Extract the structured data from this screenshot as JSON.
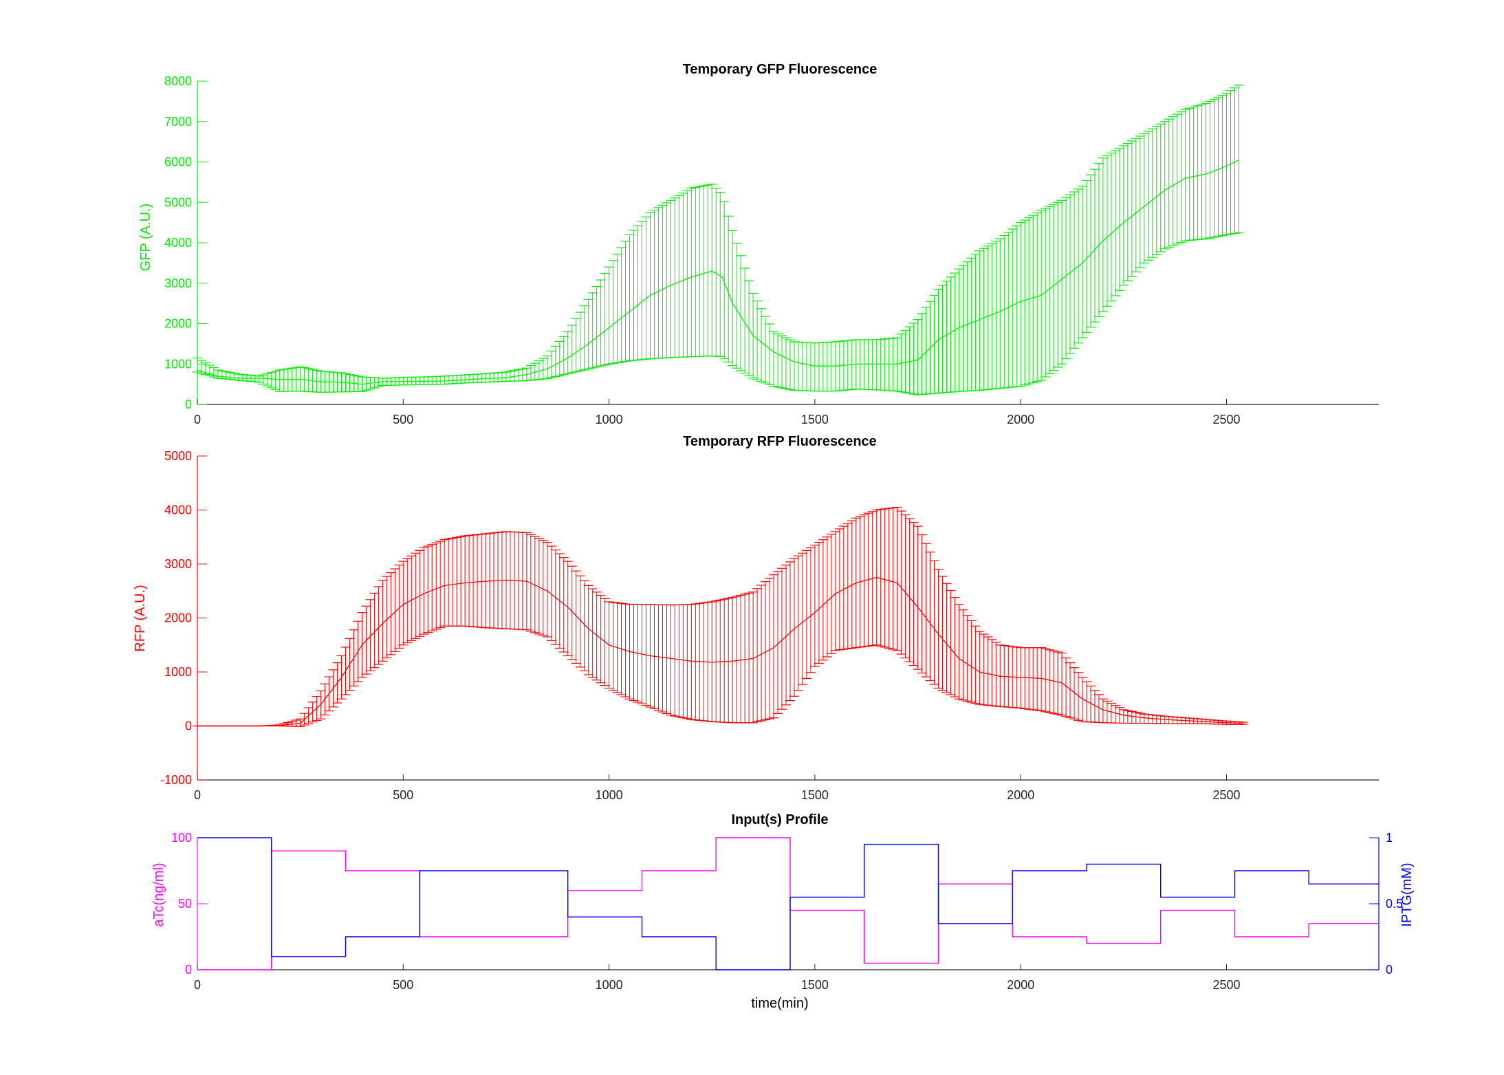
{
  "chart_data": [
    {
      "type": "line",
      "title": "Temporary GFP Fluorescence",
      "xlabel": "",
      "ylabel": "GFP (A.U.)",
      "color": "#00ee00",
      "xlim": [
        0,
        2870
      ],
      "ylim": [
        0,
        8000
      ],
      "xticks": [
        0,
        500,
        1000,
        1500,
        2000,
        2500
      ],
      "yticks": [
        0,
        1000,
        2000,
        3000,
        4000,
        5000,
        6000,
        7000,
        8000
      ],
      "error_bars": true,
      "x": [
        0,
        50,
        100,
        150,
        200,
        250,
        300,
        350,
        400,
        450,
        500,
        550,
        600,
        650,
        700,
        750,
        800,
        850,
        900,
        950,
        1000,
        1050,
        1100,
        1150,
        1200,
        1250,
        1275,
        1300,
        1350,
        1400,
        1450,
        1500,
        1550,
        1600,
        1650,
        1700,
        1750,
        1800,
        1850,
        1900,
        1950,
        2000,
        2050,
        2100,
        2150,
        2200,
        2250,
        2300,
        2350,
        2400,
        2450,
        2500,
        2530
      ],
      "mean": [
        850,
        700,
        650,
        650,
        620,
        620,
        560,
        550,
        500,
        560,
        570,
        570,
        580,
        610,
        640,
        660,
        740,
        880,
        1150,
        1500,
        1900,
        2300,
        2700,
        2950,
        3150,
        3300,
        3150,
        2500,
        1700,
        1300,
        1050,
        950,
        950,
        1000,
        1000,
        1000,
        1100,
        1600,
        1900,
        2100,
        2300,
        2550,
        2700,
        3100,
        3500,
        4050,
        4500,
        4900,
        5300,
        5600,
        5700,
        5900,
        6050
      ],
      "lower": [
        800,
        650,
        600,
        550,
        320,
        330,
        300,
        310,
        320,
        470,
        480,
        490,
        500,
        530,
        550,
        570,
        590,
        640,
        760,
        880,
        1000,
        1080,
        1130,
        1160,
        1180,
        1200,
        1180,
        960,
        650,
        450,
        350,
        330,
        330,
        380,
        360,
        330,
        240,
        280,
        320,
        350,
        400,
        450,
        600,
        1000,
        1650,
        2300,
        2950,
        3500,
        3850,
        4050,
        4100,
        4200,
        4250
      ],
      "upper": [
        1150,
        850,
        750,
        700,
        850,
        930,
        820,
        780,
        680,
        650,
        670,
        680,
        700,
        730,
        760,
        800,
        900,
        1200,
        1800,
        2600,
        3400,
        4200,
        4750,
        5050,
        5350,
        5450,
        5200,
        4300,
        2750,
        1800,
        1550,
        1520,
        1550,
        1600,
        1600,
        1650,
        2100,
        2850,
        3350,
        3800,
        4100,
        4500,
        4800,
        5050,
        5400,
        6100,
        6400,
        6700,
        7000,
        7300,
        7450,
        7700,
        7900
      ]
    },
    {
      "type": "line",
      "title": "Temporary RFP Fluorescence",
      "xlabel": "",
      "ylabel": "RFP (A.U.)",
      "color": "#ff0000",
      "xlim": [
        0,
        2870
      ],
      "ylim": [
        -1000,
        5000
      ],
      "xticks": [
        0,
        500,
        1000,
        1500,
        2000,
        2500
      ],
      "yticks": [
        -1000,
        0,
        1000,
        2000,
        3000,
        4000,
        5000
      ],
      "error_bars": true,
      "x": [
        0,
        50,
        100,
        150,
        200,
        250,
        300,
        350,
        400,
        450,
        500,
        550,
        600,
        650,
        700,
        750,
        800,
        850,
        900,
        950,
        1000,
        1050,
        1100,
        1150,
        1200,
        1250,
        1300,
        1350,
        1400,
        1450,
        1500,
        1550,
        1600,
        1650,
        1700,
        1750,
        1800,
        1850,
        1900,
        1950,
        2000,
        2050,
        2100,
        2150,
        2200,
        2250,
        2300,
        2350,
        2400,
        2450,
        2500,
        2540
      ],
      "mean": [
        0,
        0,
        0,
        0,
        10,
        50,
        400,
        900,
        1500,
        1900,
        2250,
        2450,
        2600,
        2650,
        2680,
        2700,
        2680,
        2500,
        2200,
        1800,
        1500,
        1380,
        1300,
        1250,
        1200,
        1180,
        1200,
        1250,
        1450,
        1800,
        2100,
        2450,
        2650,
        2750,
        2650,
        2200,
        1700,
        1250,
        1000,
        920,
        900,
        880,
        800,
        500,
        300,
        200,
        150,
        120,
        100,
        80,
        60,
        50
      ],
      "lower": [
        0,
        0,
        0,
        0,
        0,
        -10,
        130,
        500,
        900,
        1200,
        1500,
        1700,
        1850,
        1850,
        1820,
        1800,
        1780,
        1650,
        1300,
        950,
        700,
        500,
        350,
        200,
        120,
        80,
        60,
        60,
        150,
        550,
        1100,
        1400,
        1450,
        1500,
        1400,
        1050,
        700,
        500,
        400,
        360,
        330,
        280,
        200,
        80,
        60,
        50,
        50,
        40,
        40,
        40,
        30,
        30
      ],
      "upper": [
        0,
        0,
        0,
        0,
        20,
        130,
        650,
        1300,
        2100,
        2700,
        3050,
        3300,
        3450,
        3520,
        3560,
        3600,
        3580,
        3400,
        3050,
        2600,
        2300,
        2250,
        2250,
        2240,
        2250,
        2300,
        2380,
        2480,
        2800,
        3100,
        3350,
        3600,
        3850,
        4000,
        4050,
        3700,
        2900,
        2250,
        1750,
        1500,
        1450,
        1450,
        1350,
        900,
        500,
        300,
        220,
        180,
        150,
        120,
        90,
        70
      ]
    },
    {
      "type": "line",
      "title": "Input(s) Profile",
      "xlabel": "time(min)",
      "step": true,
      "xlim": [
        0,
        2870
      ],
      "xticks": [
        0,
        500,
        1000,
        1500,
        2000,
        2500
      ],
      "left_axis": {
        "label": "aTc(ng/ml)",
        "color": "#ff00ff",
        "ylim": [
          0,
          100
        ],
        "yticks": [
          0,
          50,
          100
        ]
      },
      "right_axis": {
        "label": "IPTG(mM)",
        "color": "#0000ff",
        "ylim": [
          0,
          1
        ],
        "yticks": [
          0,
          0.5,
          1
        ]
      },
      "x_edges": [
        0,
        180,
        360,
        540,
        720,
        900,
        1080,
        1260,
        1440,
        1620,
        1800,
        1980,
        2160,
        2340,
        2520,
        2700,
        2870
      ],
      "series": [
        {
          "name": "aTc(ng/ml)",
          "axis": "left",
          "color": "#ff00ff",
          "values": [
            0,
            90,
            75,
            25,
            25,
            60,
            75,
            100,
            45,
            5,
            65,
            25,
            20,
            45,
            25,
            35
          ]
        },
        {
          "name": "IPTG(mM)",
          "axis": "right",
          "color": "#0000ff",
          "values": [
            1,
            0.1,
            0.25,
            0.75,
            0.75,
            0.4,
            0.25,
            0,
            0.55,
            0.95,
            0.35,
            0.75,
            0.8,
            0.55,
            0.75,
            0.65
          ]
        }
      ]
    }
  ]
}
